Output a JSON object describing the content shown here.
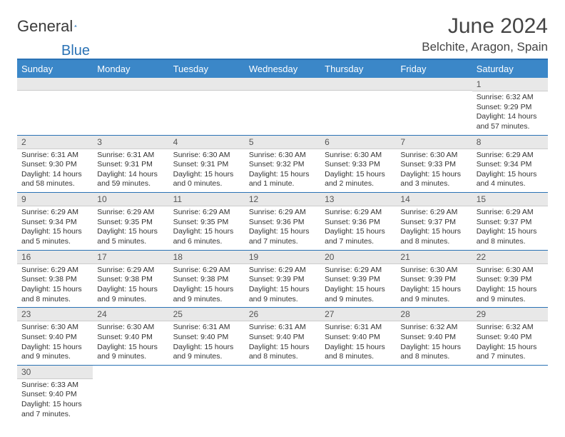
{
  "logo": {
    "text1": "General",
    "text2": "Blue",
    "text1_color": "#3a3a3a",
    "text2_color": "#2a72b5",
    "sail_color": "#2a72b5"
  },
  "title": "June 2024",
  "location": "Belchite, Aragon, Spain",
  "colors": {
    "header_bg": "#3b87c8",
    "header_text": "#ffffff",
    "border": "#2a72b5",
    "daynum_bg": "#e8e8e8",
    "body_text": "#333333"
  },
  "day_headers": [
    "Sunday",
    "Monday",
    "Tuesday",
    "Wednesday",
    "Thursday",
    "Friday",
    "Saturday"
  ],
  "weeks": [
    [
      null,
      null,
      null,
      null,
      null,
      null,
      {
        "n": "1",
        "sunrise": "Sunrise: 6:32 AM",
        "sunset": "Sunset: 9:29 PM",
        "daylight": "Daylight: 14 hours and 57 minutes."
      }
    ],
    [
      {
        "n": "2",
        "sunrise": "Sunrise: 6:31 AM",
        "sunset": "Sunset: 9:30 PM",
        "daylight": "Daylight: 14 hours and 58 minutes."
      },
      {
        "n": "3",
        "sunrise": "Sunrise: 6:31 AM",
        "sunset": "Sunset: 9:31 PM",
        "daylight": "Daylight: 14 hours and 59 minutes."
      },
      {
        "n": "4",
        "sunrise": "Sunrise: 6:30 AM",
        "sunset": "Sunset: 9:31 PM",
        "daylight": "Daylight: 15 hours and 0 minutes."
      },
      {
        "n": "5",
        "sunrise": "Sunrise: 6:30 AM",
        "sunset": "Sunset: 9:32 PM",
        "daylight": "Daylight: 15 hours and 1 minute."
      },
      {
        "n": "6",
        "sunrise": "Sunrise: 6:30 AM",
        "sunset": "Sunset: 9:33 PM",
        "daylight": "Daylight: 15 hours and 2 minutes."
      },
      {
        "n": "7",
        "sunrise": "Sunrise: 6:30 AM",
        "sunset": "Sunset: 9:33 PM",
        "daylight": "Daylight: 15 hours and 3 minutes."
      },
      {
        "n": "8",
        "sunrise": "Sunrise: 6:29 AM",
        "sunset": "Sunset: 9:34 PM",
        "daylight": "Daylight: 15 hours and 4 minutes."
      }
    ],
    [
      {
        "n": "9",
        "sunrise": "Sunrise: 6:29 AM",
        "sunset": "Sunset: 9:34 PM",
        "daylight": "Daylight: 15 hours and 5 minutes."
      },
      {
        "n": "10",
        "sunrise": "Sunrise: 6:29 AM",
        "sunset": "Sunset: 9:35 PM",
        "daylight": "Daylight: 15 hours and 5 minutes."
      },
      {
        "n": "11",
        "sunrise": "Sunrise: 6:29 AM",
        "sunset": "Sunset: 9:35 PM",
        "daylight": "Daylight: 15 hours and 6 minutes."
      },
      {
        "n": "12",
        "sunrise": "Sunrise: 6:29 AM",
        "sunset": "Sunset: 9:36 PM",
        "daylight": "Daylight: 15 hours and 7 minutes."
      },
      {
        "n": "13",
        "sunrise": "Sunrise: 6:29 AM",
        "sunset": "Sunset: 9:36 PM",
        "daylight": "Daylight: 15 hours and 7 minutes."
      },
      {
        "n": "14",
        "sunrise": "Sunrise: 6:29 AM",
        "sunset": "Sunset: 9:37 PM",
        "daylight": "Daylight: 15 hours and 8 minutes."
      },
      {
        "n": "15",
        "sunrise": "Sunrise: 6:29 AM",
        "sunset": "Sunset: 9:37 PM",
        "daylight": "Daylight: 15 hours and 8 minutes."
      }
    ],
    [
      {
        "n": "16",
        "sunrise": "Sunrise: 6:29 AM",
        "sunset": "Sunset: 9:38 PM",
        "daylight": "Daylight: 15 hours and 8 minutes."
      },
      {
        "n": "17",
        "sunrise": "Sunrise: 6:29 AM",
        "sunset": "Sunset: 9:38 PM",
        "daylight": "Daylight: 15 hours and 9 minutes."
      },
      {
        "n": "18",
        "sunrise": "Sunrise: 6:29 AM",
        "sunset": "Sunset: 9:38 PM",
        "daylight": "Daylight: 15 hours and 9 minutes."
      },
      {
        "n": "19",
        "sunrise": "Sunrise: 6:29 AM",
        "sunset": "Sunset: 9:39 PM",
        "daylight": "Daylight: 15 hours and 9 minutes."
      },
      {
        "n": "20",
        "sunrise": "Sunrise: 6:29 AM",
        "sunset": "Sunset: 9:39 PM",
        "daylight": "Daylight: 15 hours and 9 minutes."
      },
      {
        "n": "21",
        "sunrise": "Sunrise: 6:30 AM",
        "sunset": "Sunset: 9:39 PM",
        "daylight": "Daylight: 15 hours and 9 minutes."
      },
      {
        "n": "22",
        "sunrise": "Sunrise: 6:30 AM",
        "sunset": "Sunset: 9:39 PM",
        "daylight": "Daylight: 15 hours and 9 minutes."
      }
    ],
    [
      {
        "n": "23",
        "sunrise": "Sunrise: 6:30 AM",
        "sunset": "Sunset: 9:40 PM",
        "daylight": "Daylight: 15 hours and 9 minutes."
      },
      {
        "n": "24",
        "sunrise": "Sunrise: 6:30 AM",
        "sunset": "Sunset: 9:40 PM",
        "daylight": "Daylight: 15 hours and 9 minutes."
      },
      {
        "n": "25",
        "sunrise": "Sunrise: 6:31 AM",
        "sunset": "Sunset: 9:40 PM",
        "daylight": "Daylight: 15 hours and 9 minutes."
      },
      {
        "n": "26",
        "sunrise": "Sunrise: 6:31 AM",
        "sunset": "Sunset: 9:40 PM",
        "daylight": "Daylight: 15 hours and 8 minutes."
      },
      {
        "n": "27",
        "sunrise": "Sunrise: 6:31 AM",
        "sunset": "Sunset: 9:40 PM",
        "daylight": "Daylight: 15 hours and 8 minutes."
      },
      {
        "n": "28",
        "sunrise": "Sunrise: 6:32 AM",
        "sunset": "Sunset: 9:40 PM",
        "daylight": "Daylight: 15 hours and 8 minutes."
      },
      {
        "n": "29",
        "sunrise": "Sunrise: 6:32 AM",
        "sunset": "Sunset: 9:40 PM",
        "daylight": "Daylight: 15 hours and 7 minutes."
      }
    ],
    [
      {
        "n": "30",
        "sunrise": "Sunrise: 6:33 AM",
        "sunset": "Sunset: 9:40 PM",
        "daylight": "Daylight: 15 hours and 7 minutes."
      },
      null,
      null,
      null,
      null,
      null,
      null
    ]
  ]
}
